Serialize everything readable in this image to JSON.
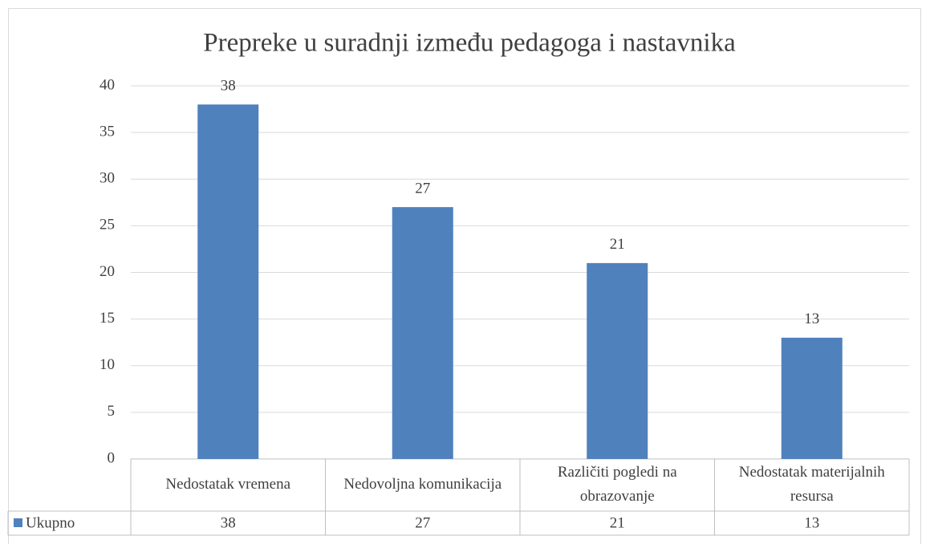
{
  "chart_data": {
    "type": "bar",
    "title": "Prepreke u suradnji između pedagoga i nastavnika",
    "categories": [
      "Nedostatak vremena",
      "Nedovoljna komunikacija",
      "Različiti pogledi na obrazovanje",
      "Nedostatak materijalnih resursa"
    ],
    "series": [
      {
        "name": "Ukupno",
        "color": "#4f81bd",
        "values": [
          38,
          27,
          21,
          13
        ]
      }
    ],
    "ylim": [
      0,
      40
    ],
    "yticks": [
      0,
      5,
      10,
      15,
      20,
      25,
      30,
      35,
      40
    ],
    "grid": true,
    "data_table": true
  }
}
